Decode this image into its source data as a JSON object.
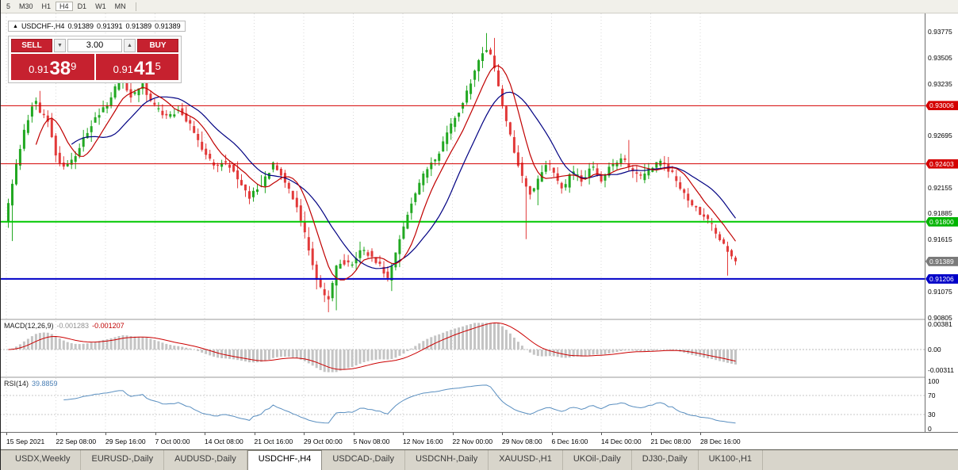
{
  "toolbar": {
    "timeframes": [
      "5",
      "M30",
      "H1",
      "H4",
      "D1",
      "W1",
      "MN"
    ],
    "active": "H4"
  },
  "chart_header": {
    "collapse_icon": "▲",
    "symbol": "USDCHF-,H4",
    "ohlc": [
      "0.91389",
      "0.91391",
      "0.91389",
      "0.91389"
    ]
  },
  "trade_panel": {
    "sell_label": "SELL",
    "buy_label": "BUY",
    "volume": "3.00",
    "spin_down_icon": "▼",
    "spin_up_icon": "▲",
    "sell_price": {
      "prefix": "0.91",
      "pips": "38",
      "frac": "9"
    },
    "buy_price": {
      "prefix": "0.91",
      "pips": "41",
      "frac": "5"
    }
  },
  "price_axis": {
    "labels": [
      {
        "text": "0.93775",
        "price": 0.93775
      },
      {
        "text": "0.93505",
        "price": 0.93505
      },
      {
        "text": "0.93235",
        "price": 0.93235
      },
      {
        "text": "0.92695",
        "price": 0.92695
      },
      {
        "text": "0.92155",
        "price": 0.92155
      },
      {
        "text": "0.91885",
        "price": 0.91885
      },
      {
        "text": "0.91615",
        "price": 0.91615
      },
      {
        "text": "0.91075",
        "price": 0.91075
      },
      {
        "text": "0.90805",
        "price": 0.90805
      }
    ],
    "badges": [
      {
        "text": "0.93006",
        "price": 0.93006,
        "color": "#d40000",
        "name": "resistance-level-badge-1"
      },
      {
        "text": "0.92403",
        "price": 0.92403,
        "color": "#d40000",
        "name": "resistance-level-badge-2"
      },
      {
        "text": "0.91800",
        "price": 0.918,
        "color": "#00b400",
        "name": "support-level-badge"
      },
      {
        "text": "0.91389",
        "price": 0.91389,
        "color": "#7a7a7a",
        "name": "current-price-badge"
      },
      {
        "text": "0.91206",
        "price": 0.91206,
        "color": "#0000c8",
        "name": "blue-level-badge"
      }
    ]
  },
  "levels": [
    {
      "price": 0.93006,
      "color": "#d40000",
      "width": 1
    },
    {
      "price": 0.92403,
      "color": "#d40000",
      "width": 1
    },
    {
      "price": 0.918,
      "color": "#00c800",
      "width": 2
    },
    {
      "price": 0.91206,
      "color": "#0000c8",
      "width": 2
    }
  ],
  "macd_panel": {
    "label": "MACD(12,26,9)",
    "values": [
      "-0.001283",
      "-0.001207"
    ],
    "axis": [
      "0.00381",
      "0.00",
      "-0.00311"
    ]
  },
  "rsi_panel": {
    "label": "RSI(14)",
    "value": "39.8859",
    "axis": [
      "100",
      "70",
      "30",
      "0"
    ],
    "level_lines": [
      70,
      30
    ]
  },
  "time_axis": {
    "labels": [
      "15 Sep 2021",
      "22 Sep 08:00",
      "29 Sep 16:00",
      "7 Oct 00:00",
      "14 Oct 08:00",
      "21 Oct 16:00",
      "29 Oct 00:00",
      "5 Nov 08:00",
      "12 Nov 16:00",
      "22 Nov 00:00",
      "29 Nov 08:00",
      "6 Dec 16:00",
      "14 Dec 00:00",
      "21 Dec 08:00",
      "28 Dec 16:00"
    ]
  },
  "bottom_tabs": {
    "tabs": [
      "USDX,Weekly",
      "EURUSD-,Daily",
      "AUDUSD-,Daily",
      "USDCHF-,H4",
      "USDCAD-,Daily",
      "USDCNH-,Daily",
      "XAUUSD-,H1",
      "UKOil-,Daily",
      "DJ30-,Daily",
      "UK100-,H1"
    ],
    "active": "USDCHF-,H4"
  },
  "chart_data": {
    "type": "candlestick",
    "symbol": "USDCHF",
    "timeframe": "H4",
    "last_close": 0.91389,
    "price_range": [
      0.90805,
      0.93775
    ],
    "candle_count": 185,
    "price_path": [
      [
        0,
        0.918
      ],
      [
        0.007,
        0.9205
      ],
      [
        0.015,
        0.9235
      ],
      [
        0.029,
        0.928
      ],
      [
        0.041,
        0.9308
      ],
      [
        0.048,
        0.9295
      ],
      [
        0.059,
        0.9288
      ],
      [
        0.073,
        0.9242
      ],
      [
        0.089,
        0.9238
      ],
      [
        0.105,
        0.9262
      ],
      [
        0.124,
        0.9288
      ],
      [
        0.141,
        0.9302
      ],
      [
        0.159,
        0.933
      ],
      [
        0.174,
        0.931
      ],
      [
        0.189,
        0.9322
      ],
      [
        0.204,
        0.93
      ],
      [
        0.221,
        0.929
      ],
      [
        0.239,
        0.9296
      ],
      [
        0.255,
        0.928
      ],
      [
        0.271,
        0.9256
      ],
      [
        0.286,
        0.9238
      ],
      [
        0.303,
        0.9242
      ],
      [
        0.319,
        0.9226
      ],
      [
        0.335,
        0.9206
      ],
      [
        0.351,
        0.9218
      ],
      [
        0.368,
        0.924
      ],
      [
        0.384,
        0.9222
      ],
      [
        0.4,
        0.9196
      ],
      [
        0.417,
        0.915
      ],
      [
        0.43,
        0.9112
      ],
      [
        0.444,
        0.9098
      ],
      [
        0.456,
        0.914
      ],
      [
        0.473,
        0.9135
      ],
      [
        0.488,
        0.9152
      ],
      [
        0.503,
        0.9144
      ],
      [
        0.516,
        0.9132
      ],
      [
        0.525,
        0.912
      ],
      [
        0.537,
        0.9152
      ],
      [
        0.55,
        0.9185
      ],
      [
        0.564,
        0.9212
      ],
      [
        0.578,
        0.9236
      ],
      [
        0.592,
        0.9248
      ],
      [
        0.605,
        0.9272
      ],
      [
        0.62,
        0.9292
      ],
      [
        0.634,
        0.9318
      ],
      [
        0.65,
        0.9352
      ],
      [
        0.662,
        0.936
      ],
      [
        0.672,
        0.9332
      ],
      [
        0.685,
        0.929
      ],
      [
        0.698,
        0.9252
      ],
      [
        0.71,
        0.9222
      ],
      [
        0.72,
        0.9208
      ],
      [
        0.732,
        0.9228
      ],
      [
        0.743,
        0.9242
      ],
      [
        0.754,
        0.9226
      ],
      [
        0.765,
        0.9214
      ],
      [
        0.776,
        0.9232
      ],
      [
        0.79,
        0.9222
      ],
      [
        0.803,
        0.9238
      ],
      [
        0.816,
        0.9222
      ],
      [
        0.829,
        0.9238
      ],
      [
        0.846,
        0.9245
      ],
      [
        0.859,
        0.9232
      ],
      [
        0.872,
        0.9225
      ],
      [
        0.886,
        0.9238
      ],
      [
        0.9,
        0.9242
      ],
      [
        0.913,
        0.923
      ],
      [
        0.926,
        0.9212
      ],
      [
        0.94,
        0.9198
      ],
      [
        0.954,
        0.9188
      ],
      [
        0.967,
        0.9176
      ],
      [
        0.98,
        0.916
      ],
      [
        0.989,
        0.9148
      ],
      [
        1,
        0.9139
      ]
    ],
    "spikes": [
      {
        "f": 0.004,
        "low": 0.916
      },
      {
        "f": 0.041,
        "high": 0.9316
      },
      {
        "f": 0.159,
        "high": 0.9338
      },
      {
        "f": 0.437,
        "low": 0.9086
      },
      {
        "f": 0.448,
        "low": 0.9088
      },
      {
        "f": 0.525,
        "low": 0.9108
      },
      {
        "f": 0.655,
        "high": 0.9376
      },
      {
        "f": 0.663,
        "high": 0.9371
      },
      {
        "f": 0.708,
        "low": 0.9162
      },
      {
        "f": 0.846,
        "high": 0.9265
      },
      {
        "f": 0.985,
        "low": 0.9124
      }
    ],
    "colors": {
      "up": "#22a822",
      "down": "#e23a3a",
      "ma_fast": "#c00000",
      "ma_slow": "#000082",
      "macd_hist": "#c4c4c4",
      "macd_signal": "#cc0000",
      "rsi": "#5a8fc0",
      "grid": "#dadada"
    }
  }
}
